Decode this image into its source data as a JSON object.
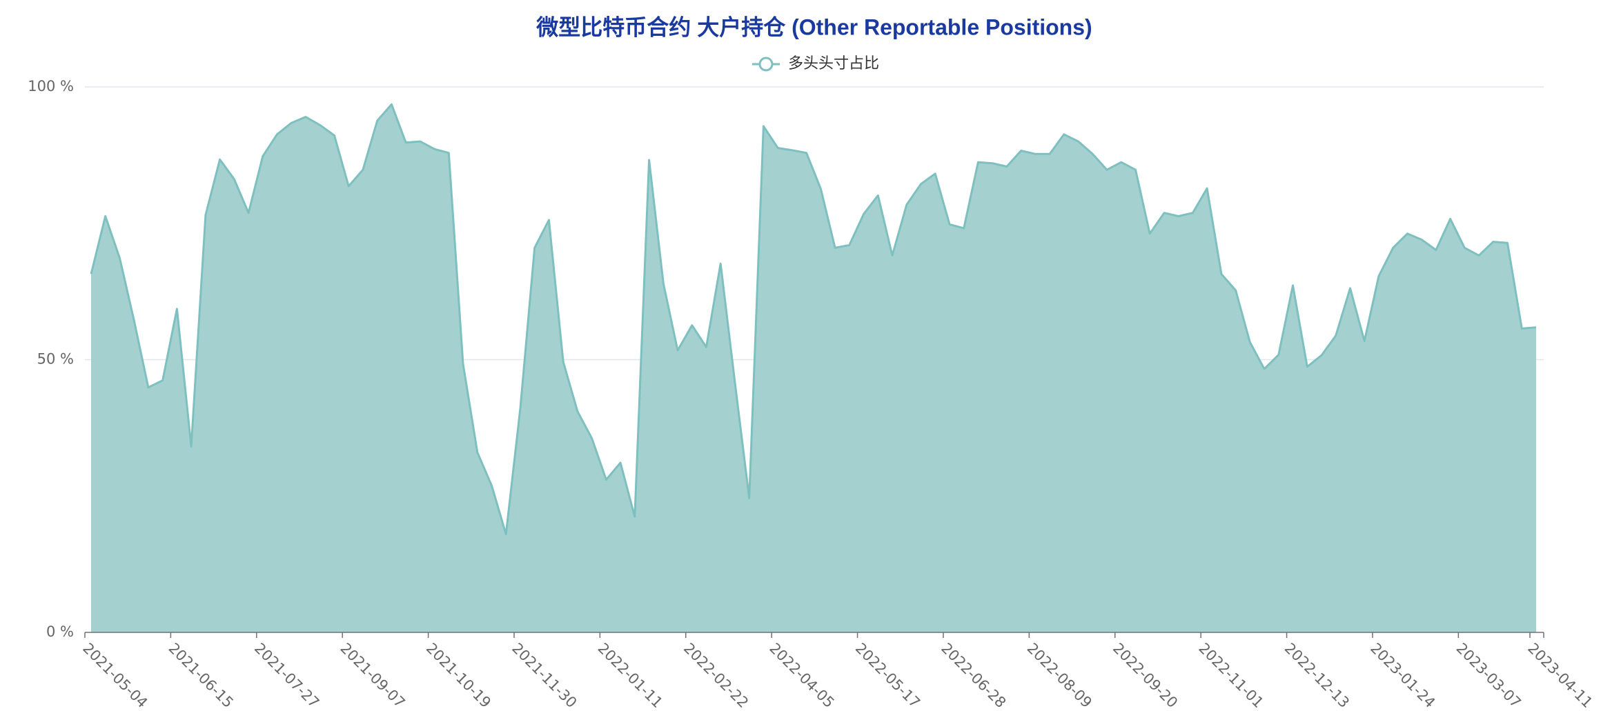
{
  "chart_data": {
    "type": "area",
    "title": "微型比特币合约 大户持仓 (Other Reportable Positions)",
    "categories": [
      "2021-05-04",
      null,
      null,
      null,
      null,
      null,
      "2021-06-15",
      null,
      null,
      null,
      null,
      null,
      "2021-07-27",
      null,
      null,
      null,
      null,
      null,
      "2021-09-07",
      null,
      null,
      null,
      null,
      null,
      "2021-10-19",
      null,
      null,
      null,
      null,
      null,
      "2021-11-30",
      null,
      null,
      null,
      null,
      null,
      "2022-01-11",
      null,
      null,
      null,
      null,
      null,
      "2022-02-22",
      null,
      null,
      null,
      null,
      null,
      "2022-04-05",
      null,
      null,
      null,
      null,
      null,
      "2022-05-17",
      null,
      null,
      null,
      null,
      null,
      "2022-06-28",
      null,
      null,
      null,
      null,
      null,
      "2022-08-09",
      null,
      null,
      null,
      null,
      null,
      "2022-09-20",
      null,
      null,
      null,
      null,
      null,
      "2022-11-01",
      null,
      null,
      null,
      null,
      null,
      "2022-12-13",
      null,
      null,
      null,
      null,
      null,
      "2023-01-24",
      null,
      null,
      null,
      null,
      null,
      "2023-03-07",
      null,
      null,
      null,
      null,
      "2023-04-11"
    ],
    "series": [
      {
        "name": "多头头寸占比",
        "color": "#7ec0bf",
        "fill": "#a5d0d0",
        "values": [
          65.7,
          76.3,
          68.6,
          57.2,
          44.9,
          46.2,
          59.3,
          34.1,
          76.5,
          86.7,
          83.1,
          76.9,
          87.3,
          91.3,
          93.4,
          94.5,
          93.0,
          91.1,
          81.8,
          84.8,
          93.8,
          96.8,
          89.8,
          90.0,
          88.6,
          87.9,
          49.2,
          33.0,
          26.9,
          18.0,
          41.1,
          70.5,
          75.6,
          49.6,
          40.5,
          35.6,
          28.0,
          31.1,
          21.2,
          86.6,
          64.0,
          51.7,
          56.3,
          52.3,
          67.6,
          45.8,
          24.6,
          92.8,
          88.8,
          88.4,
          87.9,
          81.3,
          70.5,
          71.0,
          76.7,
          80.1,
          69.1,
          78.4,
          82.2,
          84.1,
          74.8,
          74.1,
          86.2,
          86.0,
          85.4,
          88.3,
          87.7,
          87.7,
          91.3,
          90.0,
          87.7,
          84.8,
          86.2,
          84.8,
          73.1,
          76.9,
          76.3,
          76.9,
          81.4,
          65.7,
          62.7,
          53.2,
          48.3,
          50.9,
          63.6,
          48.7,
          50.8,
          54.4,
          63.1,
          53.4,
          65.3,
          70.5,
          73.1,
          72.0,
          70.1,
          75.8,
          70.5,
          69.1,
          71.6,
          71.4,
          55.7,
          55.9
        ]
      }
    ],
    "ylim": [
      0,
      100
    ],
    "yticks": [
      {
        "value": 0,
        "label": "0 %"
      },
      {
        "value": 50,
        "label": "50 %"
      },
      {
        "value": 100,
        "label": "100 %"
      }
    ],
    "grid": true,
    "legend": "top"
  }
}
